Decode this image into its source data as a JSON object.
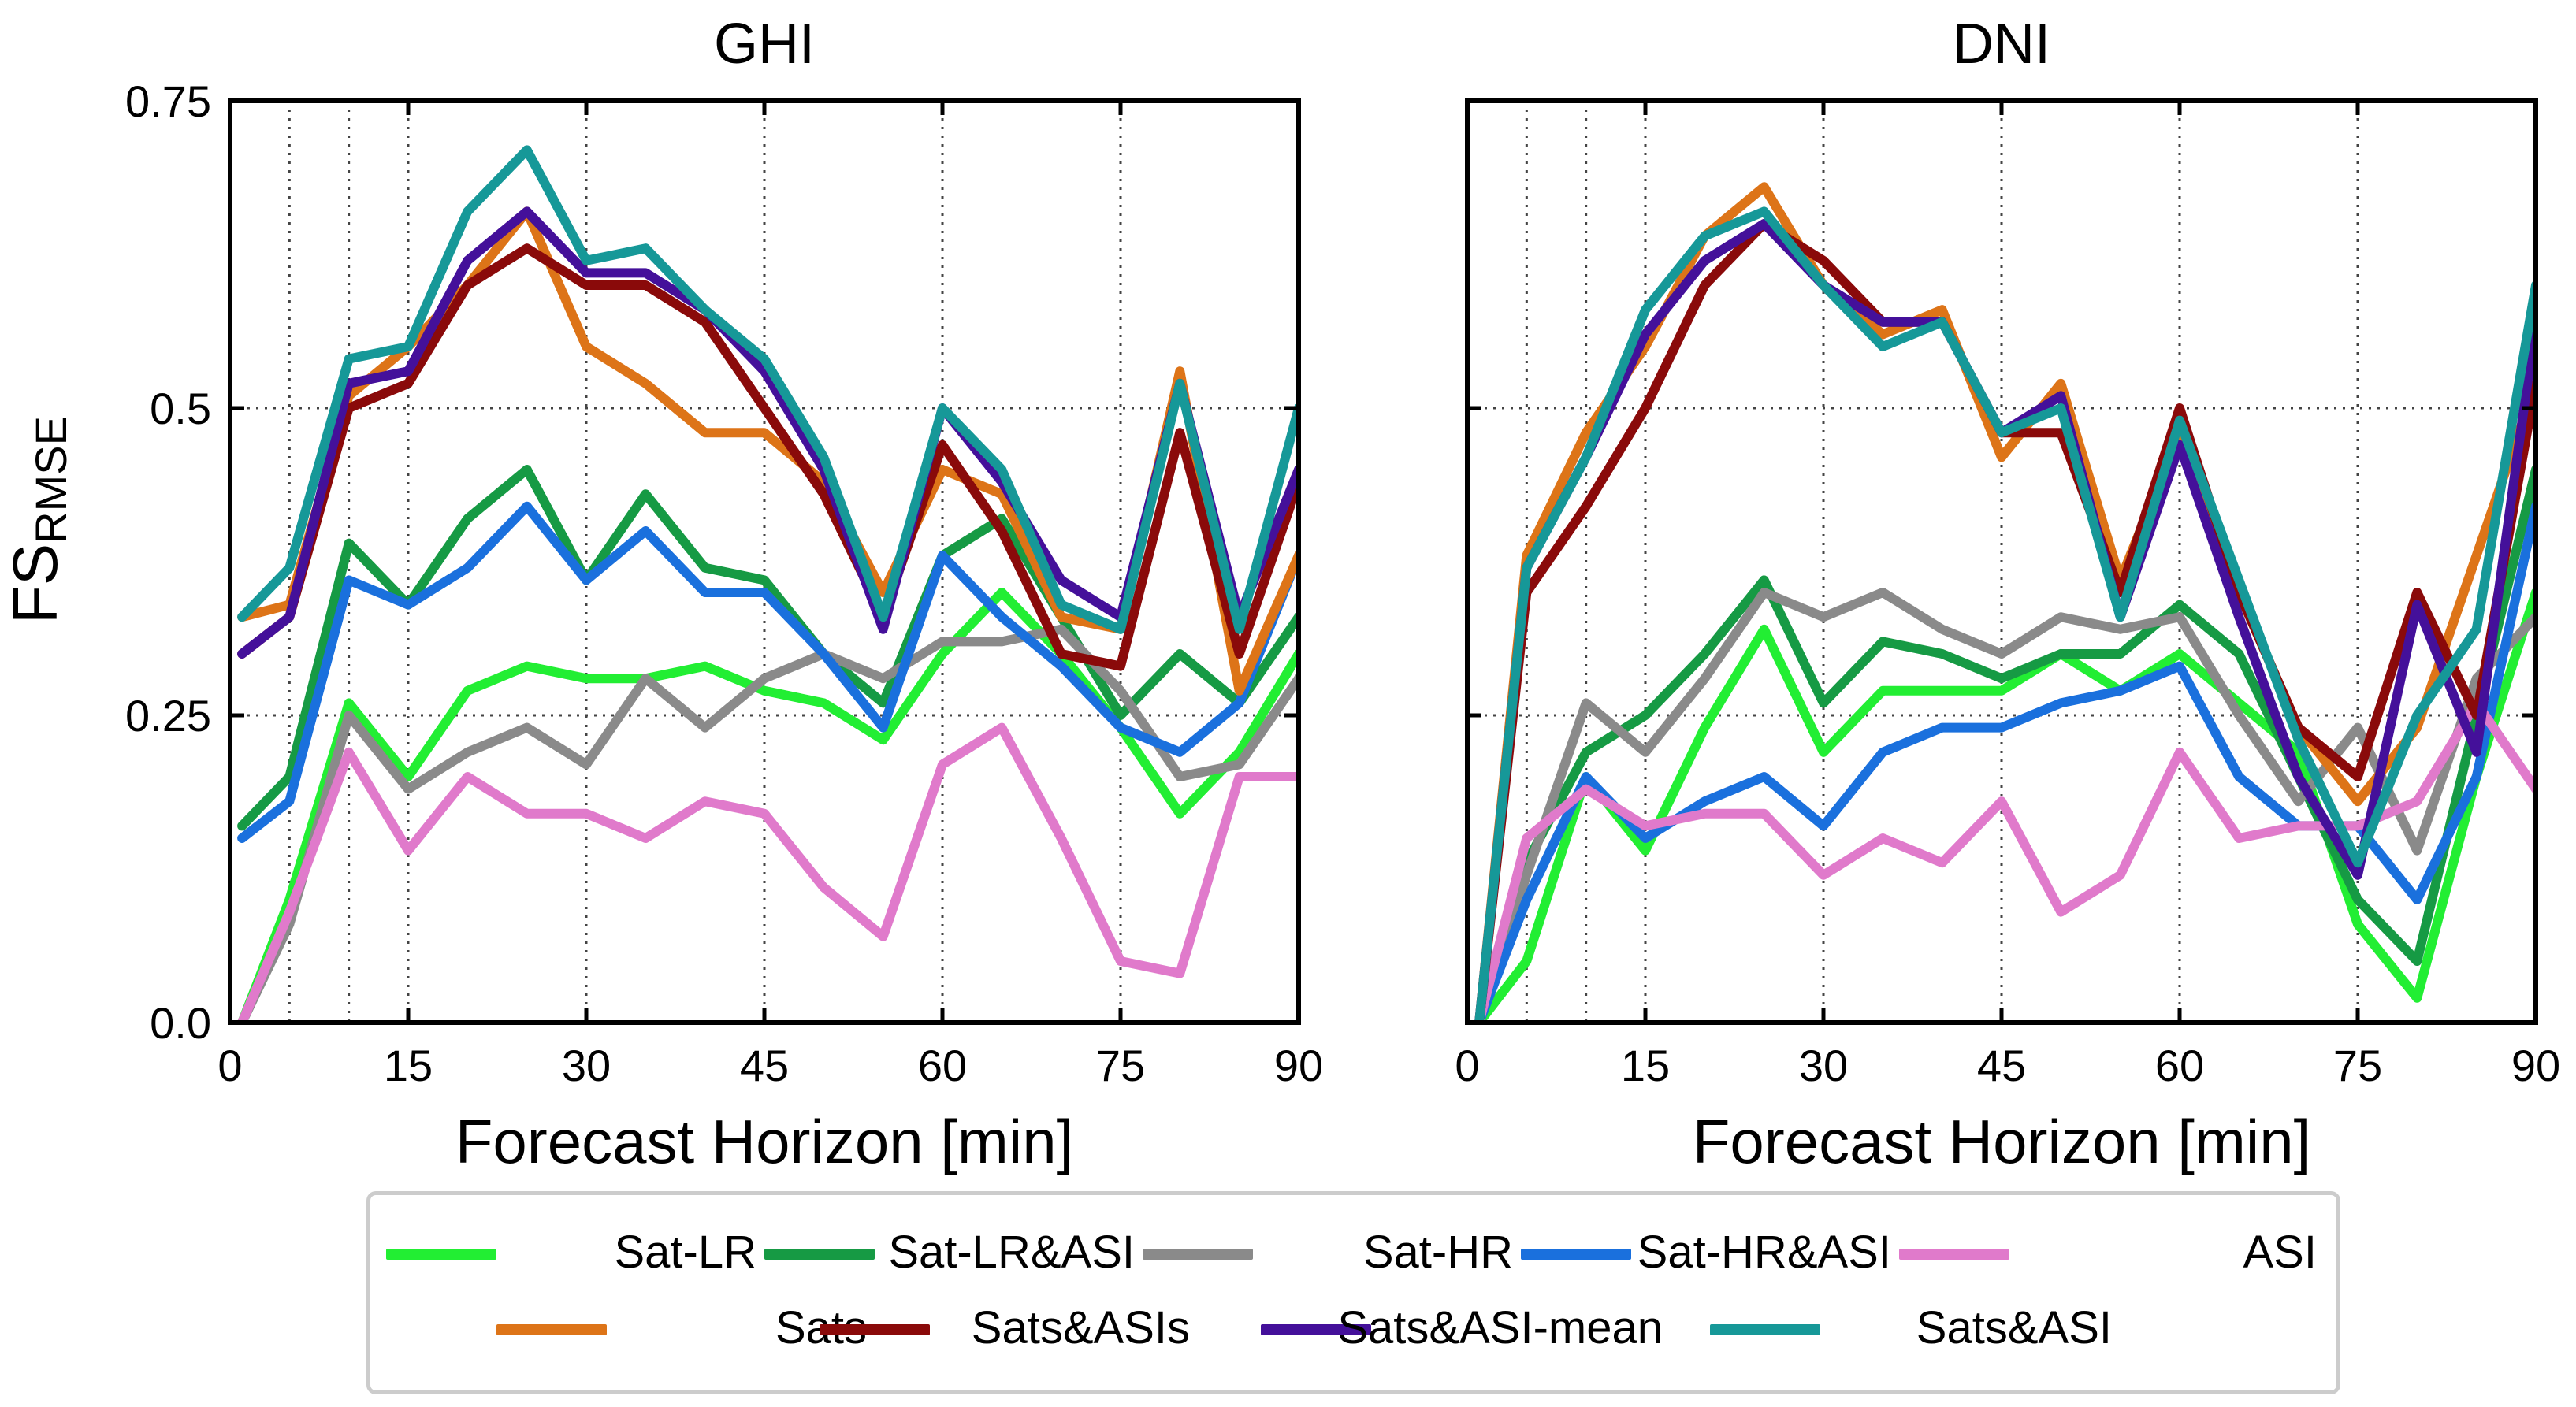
{
  "chart_data": [
    {
      "type": "line",
      "title": "GHI",
      "xlabel": "Forecast Horizon [min]",
      "ylabel": "FS",
      "ylabel_subscript": "RMSE",
      "xlim": [
        0,
        90
      ],
      "ylim": [
        0,
        0.75
      ],
      "xticks": [
        0,
        15,
        30,
        45,
        60,
        75,
        90
      ],
      "xtick_labels": [
        "0",
        "15",
        "30",
        "45",
        "60",
        "75",
        "90"
      ],
      "yticks": [
        0,
        0.25,
        0.5,
        0.75
      ],
      "ytick_labels": [
        "0.0",
        "0.25",
        "0.5",
        "0.75"
      ],
      "vgrid_minutes": [
        5,
        10,
        15,
        30,
        45,
        60,
        75
      ],
      "x": [
        1,
        5,
        10,
        15,
        20,
        25,
        30,
        35,
        40,
        45,
        50,
        55,
        60,
        65,
        70,
        75,
        80,
        85,
        90
      ],
      "series": [
        {
          "name": "Sat-LR",
          "values": [
            0.0,
            0.1,
            0.26,
            0.2,
            0.27,
            0.29,
            0.28,
            0.28,
            0.29,
            0.27,
            0.26,
            0.23,
            0.3,
            0.35,
            0.3,
            0.24,
            0.17,
            0.22,
            0.3
          ]
        },
        {
          "name": "Sat-LR&ASI",
          "values": [
            0.16,
            0.2,
            0.39,
            0.34,
            0.41,
            0.45,
            0.36,
            0.43,
            0.37,
            0.36,
            0.3,
            0.26,
            0.38,
            0.41,
            0.33,
            0.25,
            0.3,
            0.26,
            0.33
          ]
        },
        {
          "name": "Sat-HR",
          "values": [
            0.0,
            0.08,
            0.25,
            0.19,
            0.22,
            0.24,
            0.21,
            0.28,
            0.24,
            0.28,
            0.3,
            0.28,
            0.31,
            0.31,
            0.32,
            0.27,
            0.2,
            0.21,
            0.28
          ]
        },
        {
          "name": "Sat-HR&ASI",
          "values": [
            0.15,
            0.18,
            0.36,
            0.34,
            0.37,
            0.42,
            0.36,
            0.4,
            0.35,
            0.35,
            0.3,
            0.24,
            0.38,
            0.33,
            0.29,
            0.24,
            0.22,
            0.26,
            0.38
          ]
        },
        {
          "name": "ASI",
          "values": [
            0.0,
            0.09,
            0.22,
            0.14,
            0.2,
            0.17,
            0.17,
            0.15,
            0.18,
            0.17,
            0.11,
            0.07,
            0.21,
            0.24,
            0.15,
            0.05,
            0.04,
            0.2,
            0.2
          ]
        },
        {
          "name": "Sats",
          "values": [
            0.33,
            0.34,
            0.51,
            0.55,
            0.6,
            0.66,
            0.55,
            0.52,
            0.48,
            0.48,
            0.44,
            0.35,
            0.45,
            0.43,
            0.33,
            0.32,
            0.53,
            0.27,
            0.38
          ]
        },
        {
          "name": "Sats&ASIs",
          "values": [
            0.3,
            0.33,
            0.5,
            0.52,
            0.6,
            0.63,
            0.6,
            0.6,
            0.57,
            0.5,
            0.43,
            0.33,
            0.47,
            0.4,
            0.3,
            0.29,
            0.48,
            0.3,
            0.44
          ]
        },
        {
          "name": "Sats&ASI-mean",
          "values": [
            0.3,
            0.33,
            0.52,
            0.53,
            0.62,
            0.66,
            0.61,
            0.61,
            0.58,
            0.53,
            0.45,
            0.32,
            0.5,
            0.44,
            0.36,
            0.33,
            0.52,
            0.33,
            0.45
          ]
        },
        {
          "name": "Sats&ASI",
          "values": [
            0.33,
            0.37,
            0.54,
            0.55,
            0.66,
            0.71,
            0.62,
            0.63,
            0.58,
            0.54,
            0.46,
            0.33,
            0.5,
            0.45,
            0.34,
            0.32,
            0.52,
            0.32,
            0.5
          ]
        }
      ]
    },
    {
      "type": "line",
      "title": "DNI",
      "xlabel": "Forecast Horizon [min]",
      "xlim": [
        0,
        90
      ],
      "ylim": [
        0,
        0.75
      ],
      "xticks": [
        0,
        15,
        30,
        45,
        60,
        75,
        90
      ],
      "xtick_labels": [
        "0",
        "15",
        "30",
        "45",
        "60",
        "75",
        "90"
      ],
      "yticks": [
        0,
        0.25,
        0.5,
        0.75
      ],
      "vgrid_minutes": [
        5,
        10,
        15,
        30,
        45,
        60,
        75
      ],
      "x": [
        1,
        5,
        10,
        15,
        20,
        25,
        30,
        35,
        40,
        45,
        50,
        55,
        60,
        65,
        70,
        75,
        80,
        85,
        90
      ],
      "series": [
        {
          "name": "Sat-LR",
          "values": [
            0.0,
            0.05,
            0.2,
            0.14,
            0.24,
            0.32,
            0.22,
            0.27,
            0.27,
            0.27,
            0.3,
            0.27,
            0.3,
            0.26,
            0.22,
            0.08,
            0.02,
            0.2,
            0.35
          ]
        },
        {
          "name": "Sat-LR&ASI",
          "values": [
            0.0,
            0.13,
            0.22,
            0.25,
            0.3,
            0.36,
            0.26,
            0.31,
            0.3,
            0.28,
            0.3,
            0.3,
            0.34,
            0.3,
            0.2,
            0.1,
            0.05,
            0.25,
            0.45
          ]
        },
        {
          "name": "Sat-HR",
          "values": [
            0.0,
            0.12,
            0.26,
            0.22,
            0.28,
            0.35,
            0.33,
            0.35,
            0.32,
            0.3,
            0.33,
            0.32,
            0.33,
            0.25,
            0.18,
            0.24,
            0.14,
            0.28,
            0.33
          ]
        },
        {
          "name": "Sat-HR&ASI",
          "values": [
            0.0,
            0.1,
            0.2,
            0.15,
            0.18,
            0.2,
            0.16,
            0.22,
            0.24,
            0.24,
            0.26,
            0.27,
            0.29,
            0.2,
            0.16,
            0.16,
            0.1,
            0.2,
            0.42
          ]
        },
        {
          "name": "ASI",
          "values": [
            0.0,
            0.15,
            0.19,
            0.16,
            0.17,
            0.17,
            0.12,
            0.15,
            0.13,
            0.18,
            0.09,
            0.12,
            0.22,
            0.15,
            0.16,
            0.16,
            0.18,
            0.26,
            0.19
          ]
        },
        {
          "name": "Sats",
          "values": [
            0.0,
            0.38,
            0.48,
            0.55,
            0.64,
            0.68,
            0.6,
            0.56,
            0.58,
            0.46,
            0.52,
            0.36,
            0.48,
            0.35,
            0.24,
            0.18,
            0.24,
            0.38,
            0.52
          ]
        },
        {
          "name": "Sats&ASIs",
          "values": [
            0.0,
            0.35,
            0.42,
            0.5,
            0.6,
            0.65,
            0.62,
            0.57,
            0.57,
            0.48,
            0.48,
            0.35,
            0.5,
            0.35,
            0.24,
            0.2,
            0.35,
            0.25,
            0.52
          ]
        },
        {
          "name": "Sats&ASI-mean",
          "values": [
            0.0,
            0.37,
            0.46,
            0.56,
            0.62,
            0.65,
            0.6,
            0.57,
            0.57,
            0.48,
            0.51,
            0.33,
            0.47,
            0.33,
            0.2,
            0.12,
            0.34,
            0.22,
            0.57
          ]
        },
        {
          "name": "Sats&ASI",
          "values": [
            0.0,
            0.37,
            0.46,
            0.58,
            0.64,
            0.66,
            0.6,
            0.55,
            0.57,
            0.48,
            0.5,
            0.33,
            0.49,
            0.36,
            0.23,
            0.13,
            0.25,
            0.32,
            0.6
          ]
        }
      ]
    }
  ],
  "legend": {
    "items": [
      {
        "name": "Sat-LR",
        "color": "#22ee33"
      },
      {
        "name": "Sat-LR&ASI",
        "color": "#169a44"
      },
      {
        "name": "Sat-HR",
        "color": "#8a8a8a"
      },
      {
        "name": "Sat-HR&ASI",
        "color": "#1a70dd"
      },
      {
        "name": "ASI",
        "color": "#e07acb"
      },
      {
        "name": "Sats",
        "color": "#dd7418"
      },
      {
        "name": "Sats&ASIs",
        "color": "#8a0a0a"
      },
      {
        "name": "Sats&ASI-mean",
        "color": "#44109a"
      },
      {
        "name": "Sats&ASI",
        "color": "#169898"
      }
    ]
  }
}
